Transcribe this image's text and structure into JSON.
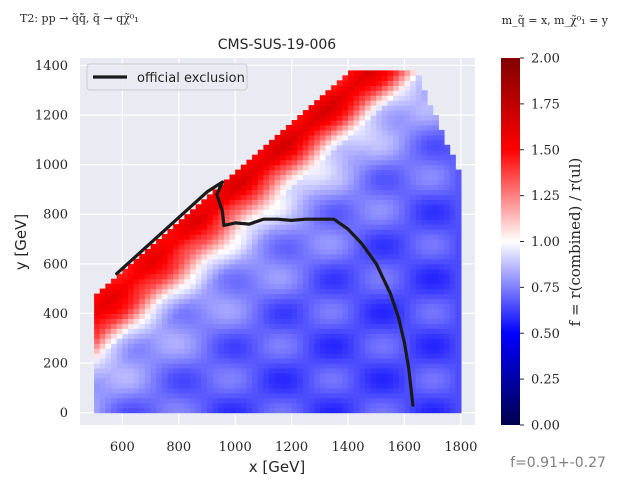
{
  "header": {
    "left": "T2: pp → q̃q̄̃, q̃ → qχ̃⁰₁",
    "right": "m_q̃ = x, m_χ̃⁰₁ = y"
  },
  "footer": {
    "fit_label": "f=0.91+-0.27"
  },
  "colorbar": {
    "label": "f = r(combined) / r(ul)",
    "ticks": [
      0.0,
      0.25,
      0.5,
      0.75,
      1.0,
      1.25,
      1.5,
      1.75,
      2.0
    ],
    "tick_labels": [
      "0.00",
      "0.25",
      "0.50",
      "0.75",
      "1.00",
      "1.25",
      "1.50",
      "1.75",
      "2.00"
    ],
    "range": [
      0,
      2
    ],
    "colors": [
      "#00004d",
      "#0000ff",
      "#ffffff",
      "#ff0000",
      "#800000"
    ]
  },
  "chart_data": {
    "type": "heatmap",
    "title": "CMS-SUS-19-006",
    "xlabel": "x [GeV]",
    "ylabel": "y [GeV]",
    "xlim": [
      450,
      1850
    ],
    "ylim": [
      -50,
      1430
    ],
    "xticks": [
      600,
      800,
      1000,
      1200,
      1400,
      1600,
      1800
    ],
    "yticks": [
      0,
      200,
      400,
      600,
      800,
      1000,
      1200,
      1400
    ],
    "grid": true,
    "background": "#eaeaf2",
    "legend": {
      "position": "top-left",
      "entries": [
        {
          "label": "official exclusion",
          "color": "#1a1a1a"
        }
      ]
    },
    "region": {
      "x_min": 500,
      "x_max": 1800,
      "y_min": 0,
      "diagonal_offset": 25,
      "upper_right_corner": [
        1640,
        1380
      ],
      "right_edge_top": [
        1800,
        950
      ]
    },
    "ratio_profile": {
      "distance_from_diagonal": [
        0,
        100,
        200,
        260,
        300,
        400,
        550,
        800,
        1100,
        1300
      ],
      "f": [
        1.45,
        1.6,
        1.35,
        1.1,
        0.95,
        0.82,
        0.75,
        0.68,
        0.65,
        0.65
      ]
    },
    "exclusion_curve": {
      "x": [
        580,
        900,
        955,
        935,
        955,
        960,
        1000,
        1050,
        1100,
        1150,
        1200,
        1250,
        1300,
        1350,
        1400,
        1450,
        1500,
        1550,
        1580,
        1600,
        1615,
        1625,
        1630
      ],
      "y": [
        560,
        890,
        930,
        880,
        810,
        755,
        765,
        760,
        780,
        780,
        775,
        780,
        780,
        780,
        740,
        680,
        600,
        480,
        380,
        280,
        180,
        80,
        30
      ]
    }
  }
}
